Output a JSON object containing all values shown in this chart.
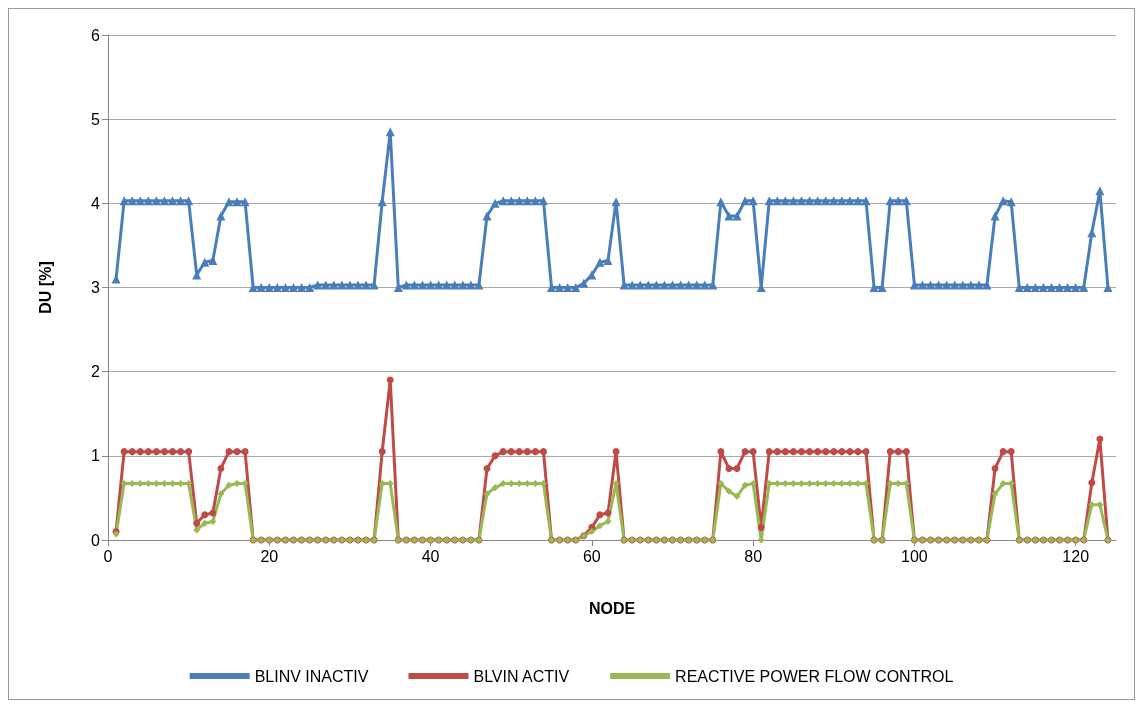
{
  "chart_data": {
    "type": "line",
    "xlabel": "NODE",
    "ylabel": "DU [%]",
    "xlim": [
      0,
      125
    ],
    "xticks": [
      0,
      20,
      40,
      60,
      80,
      100,
      120
    ],
    "ylim": [
      0,
      6
    ],
    "yticks": [
      0,
      1,
      2,
      3,
      4,
      5,
      6
    ],
    "grid": "y",
    "legend": "bottom",
    "x": [
      1,
      2,
      3,
      4,
      5,
      6,
      7,
      8,
      9,
      10,
      11,
      12,
      13,
      14,
      15,
      16,
      17,
      18,
      19,
      20,
      21,
      22,
      23,
      24,
      25,
      26,
      27,
      28,
      29,
      30,
      31,
      32,
      33,
      34,
      35,
      36,
      37,
      38,
      39,
      40,
      41,
      42,
      43,
      44,
      45,
      46,
      47,
      48,
      49,
      50,
      51,
      52,
      53,
      54,
      55,
      56,
      57,
      58,
      59,
      60,
      61,
      62,
      63,
      64,
      65,
      66,
      67,
      68,
      69,
      70,
      71,
      72,
      73,
      74,
      75,
      76,
      77,
      78,
      79,
      80,
      81,
      82,
      83,
      84,
      85,
      86,
      87,
      88,
      89,
      90,
      91,
      92,
      93,
      94,
      95,
      96,
      97,
      98,
      99,
      100,
      101,
      102,
      103,
      104,
      105,
      106,
      107,
      108,
      109,
      110,
      111,
      112,
      113,
      114,
      115,
      116,
      117,
      118,
      119,
      120,
      121,
      122,
      123,
      124
    ],
    "series": [
      {
        "name": "BLINV INACTIV",
        "color": "#4a7ebb",
        "marker": "triangle",
        "values": [
          3.1,
          4.03,
          4.03,
          4.03,
          4.03,
          4.03,
          4.03,
          4.03,
          4.03,
          4.03,
          3.15,
          3.3,
          3.32,
          3.85,
          4.02,
          4.02,
          4.02,
          3.0,
          3.0,
          3.0,
          3.0,
          3.0,
          3.0,
          3.0,
          3.0,
          3.03,
          3.03,
          3.03,
          3.03,
          3.03,
          3.03,
          3.03,
          3.03,
          4.02,
          4.85,
          3.0,
          3.03,
          3.03,
          3.03,
          3.03,
          3.03,
          3.03,
          3.03,
          3.03,
          3.03,
          3.03,
          3.85,
          4.0,
          4.03,
          4.03,
          4.03,
          4.03,
          4.03,
          4.03,
          3.0,
          3.0,
          3.0,
          3.0,
          3.05,
          3.15,
          3.3,
          3.32,
          4.02,
          3.03,
          3.03,
          3.03,
          3.03,
          3.03,
          3.03,
          3.03,
          3.03,
          3.03,
          3.03,
          3.03,
          3.03,
          4.02,
          3.85,
          3.85,
          4.03,
          4.03,
          3.0,
          4.03,
          4.03,
          4.03,
          4.03,
          4.03,
          4.03,
          4.03,
          4.03,
          4.03,
          4.03,
          4.03,
          4.03,
          4.03,
          3.0,
          3.0,
          4.03,
          4.03,
          4.03,
          3.03,
          3.03,
          3.03,
          3.03,
          3.03,
          3.03,
          3.03,
          3.03,
          3.03,
          3.03,
          3.85,
          4.03,
          4.02,
          3.0,
          3.0,
          3.0,
          3.0,
          3.0,
          3.0,
          3.0,
          3.0,
          3.0,
          3.65,
          4.15,
          3.0
        ]
      },
      {
        "name": "BLVIN ACTIV",
        "color": "#be4b48",
        "marker": "circle",
        "values": [
          0.1,
          1.05,
          1.05,
          1.05,
          1.05,
          1.05,
          1.05,
          1.05,
          1.05,
          1.05,
          0.2,
          0.3,
          0.32,
          0.85,
          1.05,
          1.05,
          1.05,
          0,
          0,
          0,
          0,
          0,
          0,
          0,
          0,
          0,
          0,
          0,
          0,
          0,
          0,
          0,
          0,
          1.05,
          1.9,
          0,
          0,
          0,
          0,
          0,
          0,
          0,
          0,
          0,
          0,
          0,
          0.85,
          1.0,
          1.05,
          1.05,
          1.05,
          1.05,
          1.05,
          1.05,
          0,
          0,
          0,
          0,
          0.05,
          0.15,
          0.3,
          0.32,
          1.05,
          0,
          0,
          0,
          0,
          0,
          0,
          0,
          0,
          0,
          0,
          0,
          0,
          1.05,
          0.85,
          0.85,
          1.05,
          1.05,
          0.15,
          1.05,
          1.05,
          1.05,
          1.05,
          1.05,
          1.05,
          1.05,
          1.05,
          1.05,
          1.05,
          1.05,
          1.05,
          1.05,
          0,
          0,
          1.05,
          1.05,
          1.05,
          0,
          0,
          0,
          0,
          0,
          0,
          0,
          0,
          0,
          0,
          0.85,
          1.05,
          1.05,
          0,
          0,
          0,
          0,
          0,
          0,
          0,
          0,
          0,
          0.68,
          1.2,
          0
        ]
      },
      {
        "name": "REACTIVE POWER FLOW CONTROL",
        "color": "#98b954",
        "marker": "diamond",
        "values": [
          0.07,
          0.67,
          0.67,
          0.67,
          0.67,
          0.67,
          0.67,
          0.67,
          0.67,
          0.67,
          0.12,
          0.2,
          0.22,
          0.55,
          0.65,
          0.67,
          0.67,
          0,
          0,
          0,
          0,
          0,
          0,
          0,
          0,
          0,
          0,
          0,
          0,
          0,
          0,
          0,
          0,
          0.67,
          0.67,
          0,
          0,
          0,
          0,
          0,
          0,
          0,
          0,
          0,
          0,
          0,
          0.55,
          0.62,
          0.67,
          0.67,
          0.67,
          0.67,
          0.67,
          0.67,
          0,
          0,
          0,
          0,
          0.05,
          0.1,
          0.17,
          0.22,
          0.67,
          0,
          0,
          0,
          0,
          0,
          0,
          0,
          0,
          0,
          0,
          0,
          0,
          0.67,
          0.58,
          0.52,
          0.65,
          0.67,
          0,
          0.67,
          0.67,
          0.67,
          0.67,
          0.67,
          0.67,
          0.67,
          0.67,
          0.67,
          0.67,
          0.67,
          0.67,
          0.67,
          0,
          0,
          0.67,
          0.67,
          0.67,
          0,
          0,
          0,
          0,
          0,
          0,
          0,
          0,
          0,
          0,
          0.55,
          0.67,
          0.67,
          0,
          0,
          0,
          0,
          0,
          0,
          0,
          0,
          0,
          0.42,
          0.42,
          0
        ]
      }
    ]
  }
}
